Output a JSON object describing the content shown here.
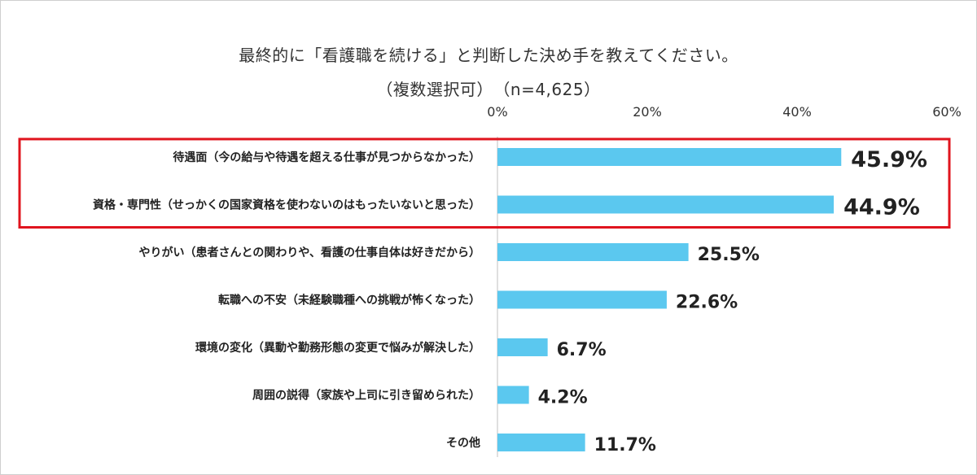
{
  "chart_data": {
    "type": "bar",
    "orientation": "horizontal",
    "title": "最終的に「看護職を続ける」と判断した決め手を教えてください。",
    "subtitle": "（複数選択可）　（n=4,625）",
    "xlim": [
      0,
      60
    ],
    "ticks": [
      "0%",
      "20%",
      "40%",
      "60%"
    ],
    "tick_values": [
      0,
      20,
      40,
      60
    ],
    "categories": [
      "待遇面（今の給与や待遇を超える仕事が見つからなかった）",
      "資格・専門性（せっかくの国家資格を使わないのはもったいないと思った）",
      "やりがい（患者さんとの関わりや、看護の仕事自体は好きだから）",
      "転職への不安（未経験職種への挑戦が怖くなった）",
      "環境の変化（異動や勤務形態の変更で悩みが解決した）",
      "周囲の説得（家族や上司に引き留められた）",
      "その他"
    ],
    "values": [
      45.9,
      44.9,
      25.5,
      22.6,
      6.7,
      4.2,
      11.7
    ],
    "labels": [
      "45.9%",
      "44.9%",
      "25.5%",
      "22.6%",
      "6.7%",
      "4.2%",
      "11.7%"
    ],
    "highlighted": [
      0,
      1
    ],
    "colors": {
      "bar": "#5bc8ef",
      "highlight_border": "#e0141e",
      "axis": "#bfbfbf"
    }
  }
}
